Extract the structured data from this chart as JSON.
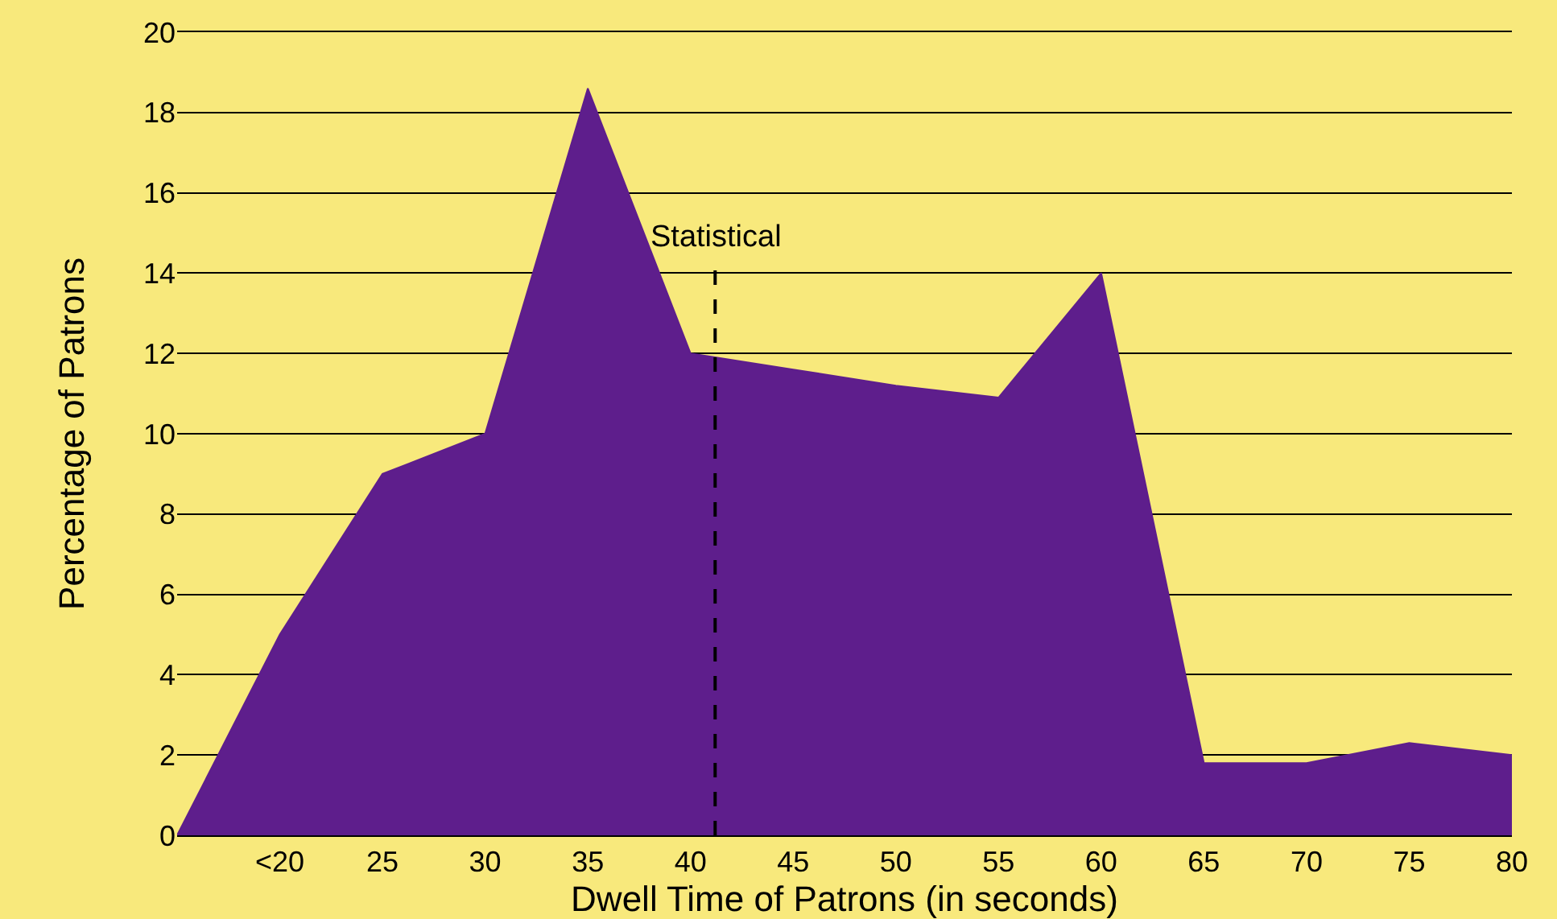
{
  "chart_data": {
    "type": "area",
    "xlabel": "Dwell Time of Patrons (in seconds)",
    "ylabel": "Percentage of Patrons",
    "x": [
      15,
      20,
      25,
      30,
      35,
      40,
      45,
      50,
      55,
      60,
      65,
      70,
      72,
      75,
      80
    ],
    "series": [
      {
        "color": "#5e1e8c",
        "values": [
          0,
          5,
          9,
          10,
          18.6,
          12,
          11.6,
          11.2,
          10.9,
          14,
          1.8,
          1.8,
          2,
          2.3,
          2
        ]
      }
    ],
    "xlim": [
      15,
      80
    ],
    "xticks": [
      {
        "value": 20,
        "label": "<20"
      },
      25,
      30,
      35,
      40,
      45,
      50,
      55,
      60,
      65,
      70,
      75,
      80
    ],
    "ylim": [
      0,
      20
    ],
    "yticks": [
      0,
      2,
      4,
      6,
      8,
      10,
      12,
      14,
      16,
      18,
      20
    ],
    "ref_lines": [
      {
        "axis": "x",
        "value": 41.2,
        "label": "Statistical",
        "color": "#000000",
        "line_style": "dashed"
      }
    ],
    "grid": "y",
    "legend": false,
    "marker": "none"
  }
}
